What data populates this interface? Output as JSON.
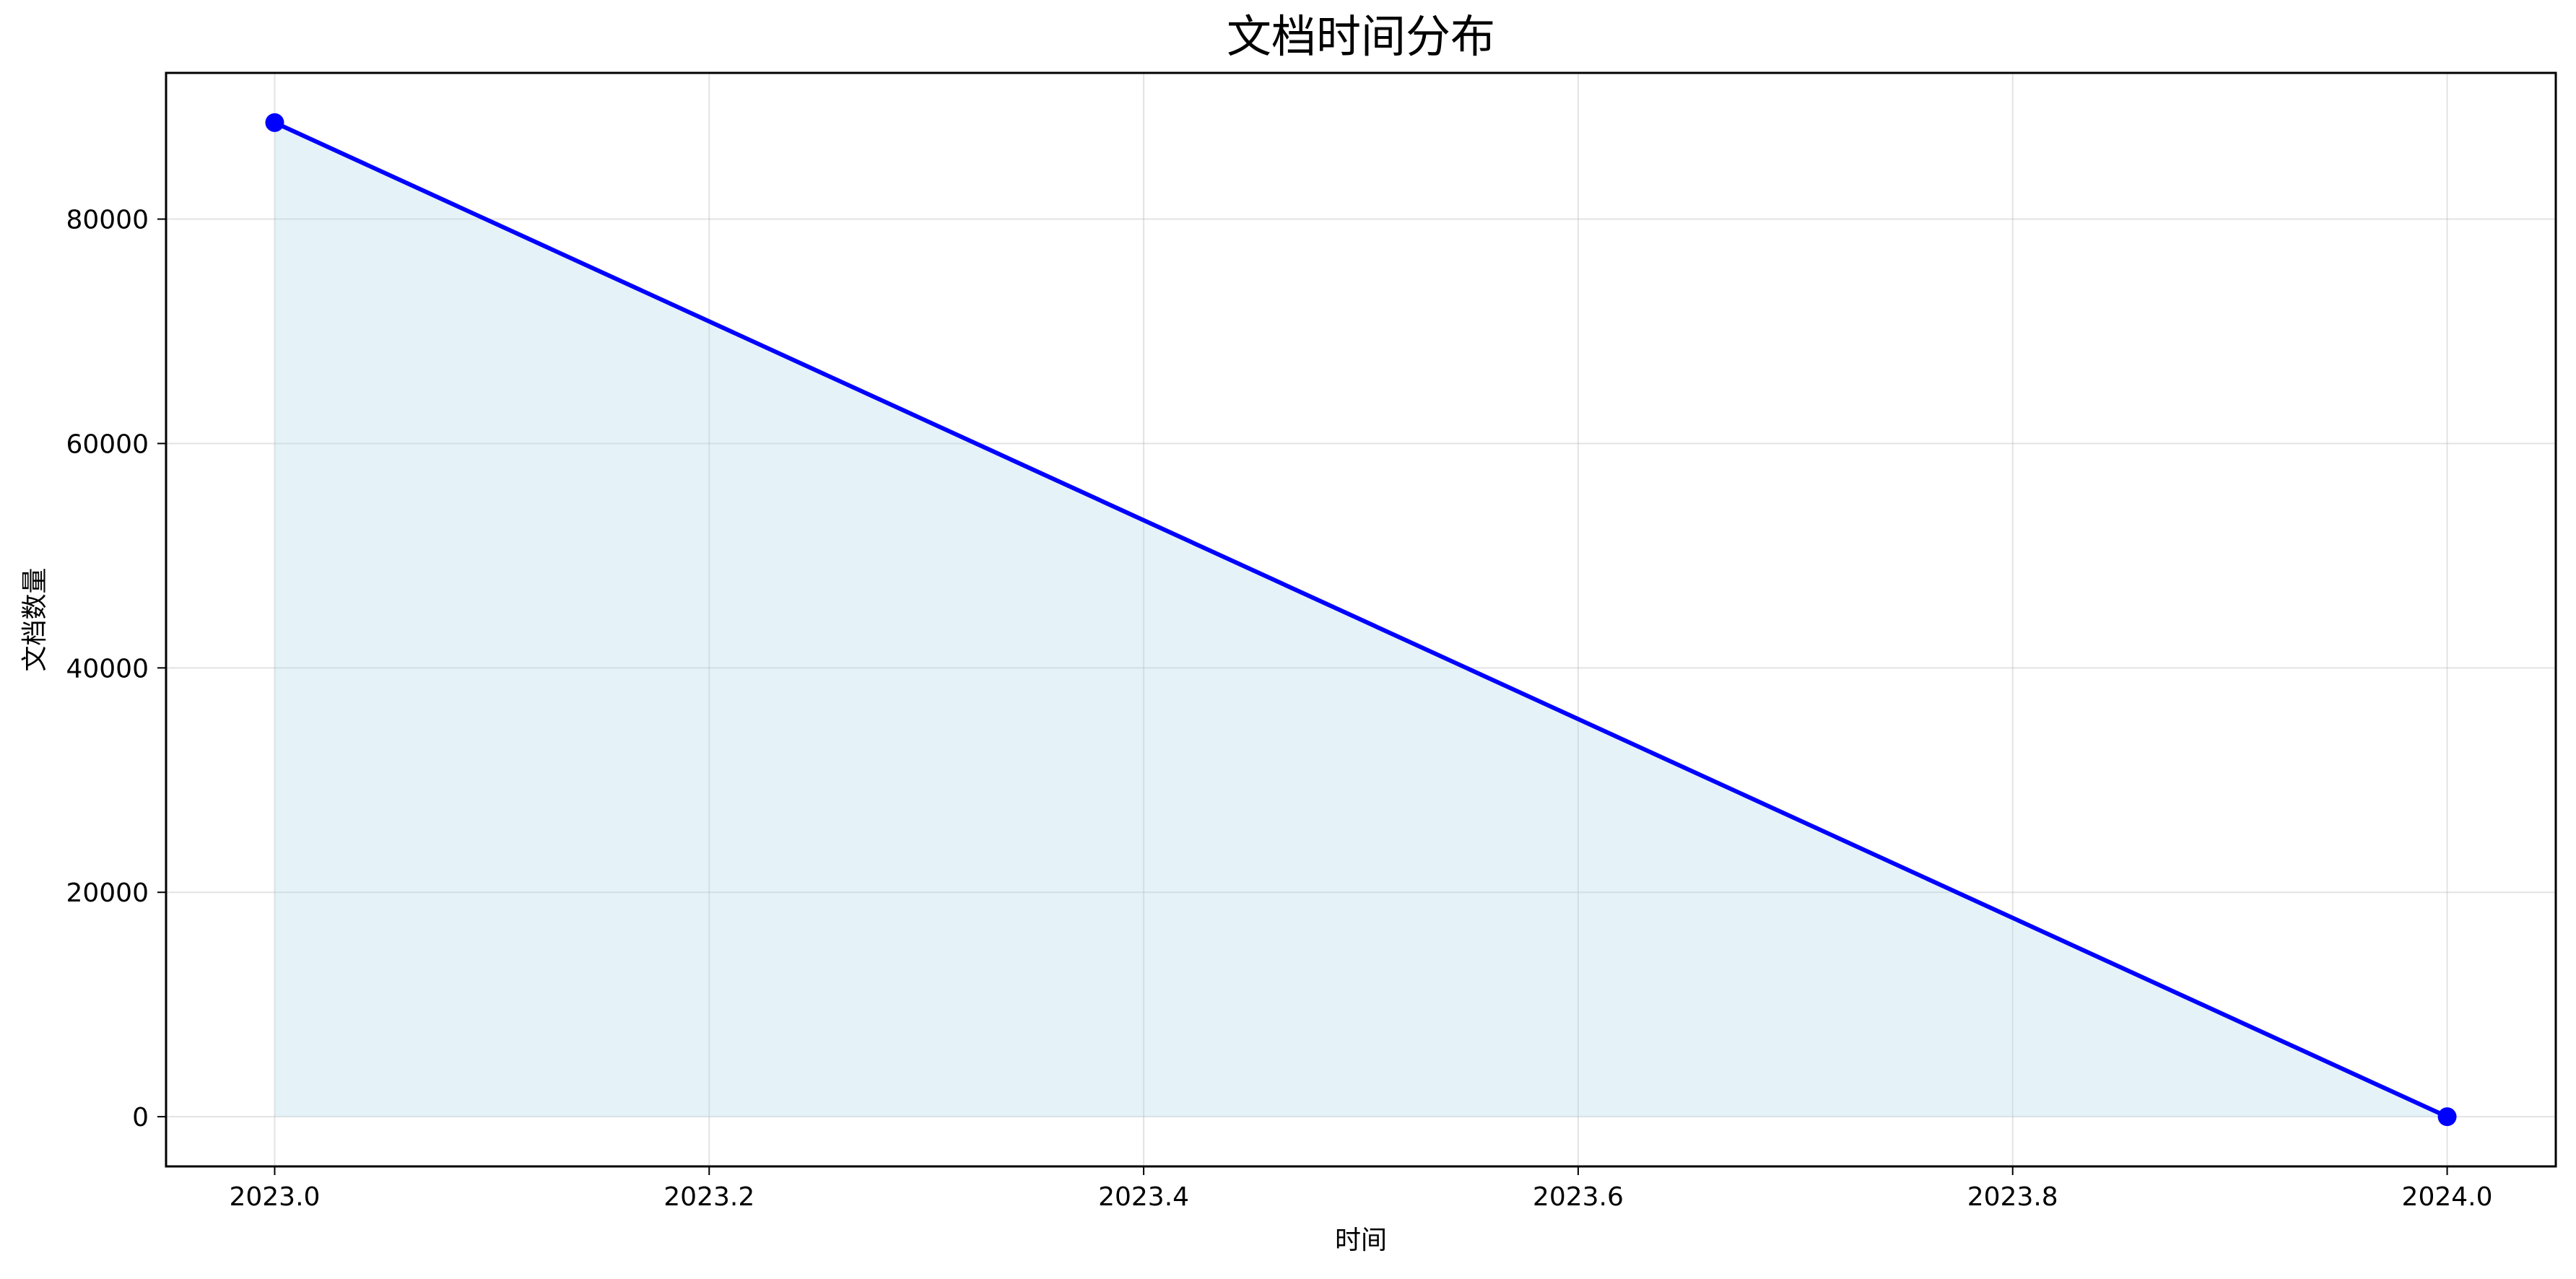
{
  "chart_data": {
    "type": "area",
    "title": "文档时间分布",
    "xlabel": "时间",
    "ylabel": "文档数量",
    "x": [
      2023.0,
      2024.0
    ],
    "series": [
      {
        "values": [
          88600,
          0
        ],
        "color": "#0000ff",
        "fill": "#add8e6",
        "marker": "circle"
      }
    ],
    "xlim": [
      2022.95,
      2024.05
    ],
    "ylim": [
      -4430,
      93030
    ],
    "xticks": [
      2023.0,
      2023.2,
      2023.4,
      2023.6,
      2023.8,
      2024.0
    ],
    "xtick_labels": [
      "2023.0",
      "2023.2",
      "2023.4",
      "2023.6",
      "2023.8",
      "2024.0"
    ],
    "yticks": [
      0,
      20000,
      40000,
      60000,
      80000
    ],
    "ytick_labels": [
      "0",
      "20000",
      "40000",
      "60000",
      "80000"
    ],
    "grid": true
  }
}
